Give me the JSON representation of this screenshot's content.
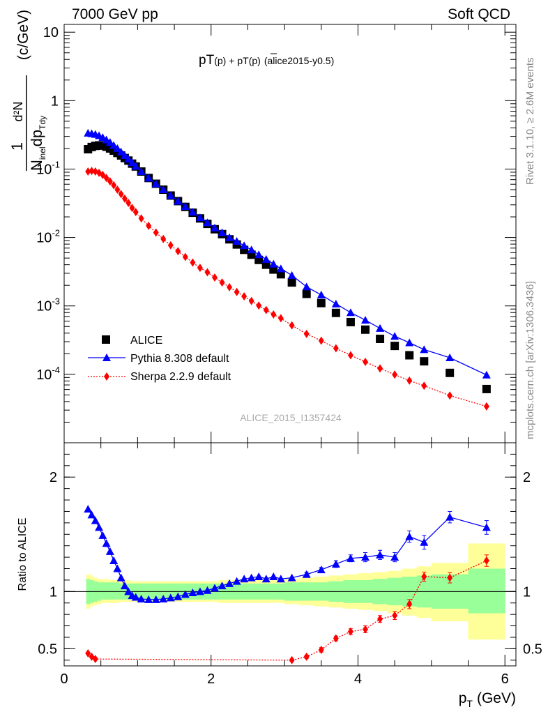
{
  "header": {
    "left": "7000 GeV pp",
    "right": "Soft QCD"
  },
  "side": {
    "rivet": "Rivet 3.1.10, ≥ 2.6M events",
    "mcplots": "mcplots.cern.ch [arXiv:1306.3436]"
  },
  "chart_data": [
    {
      "type": "scatter",
      "title": "pT(p) + pT(p̄) (alice2015-y0.5)",
      "title_parts": {
        "a": "pT",
        "b": "(p)",
        "c": "+ pT",
        "d": "(p)",
        "e": "(alice2015-y0.5)"
      },
      "watermark": "ALICE_2015_I1357424",
      "ylabel": {
        "num": "1",
        "mid": "d²N",
        "den": "N",
        "den_sub": "inel",
        "den_b": "dp",
        "den_sub2": "Tdy",
        "unit": "(c/GeV)"
      },
      "xlim": [
        0,
        6.15
      ],
      "ylim": [
        1e-05,
        13
      ],
      "log_y": true,
      "x_ticks": [
        "0",
        "2",
        "4",
        "6"
      ],
      "y_ticks": [
        {
          "value": 0.0001,
          "base": "10",
          "exp": "-4"
        },
        {
          "value": 0.001,
          "base": "10",
          "exp": "-3"
        },
        {
          "value": 0.01,
          "base": "10",
          "exp": "-2"
        },
        {
          "value": 0.1,
          "base": "10",
          "exp": "-1"
        },
        {
          "value": 1,
          "base": "1",
          "exp": ""
        },
        {
          "value": 10,
          "base": "10",
          "exp": ""
        }
      ],
      "legend": [
        "ALICE",
        "Pythia 8.308 default",
        "Sherpa 2.2.9 default"
      ],
      "legend_position": "bottom-left",
      "series": [
        {
          "name": "ALICE",
          "color": "#000000",
          "marker": "square",
          "x": [
            0.325,
            0.375,
            0.425,
            0.475,
            0.525,
            0.575,
            0.625,
            0.675,
            0.725,
            0.775,
            0.825,
            0.875,
            0.925,
            0.975,
            1.05,
            1.15,
            1.25,
            1.35,
            1.45,
            1.55,
            1.65,
            1.75,
            1.85,
            1.95,
            2.05,
            2.15,
            2.25,
            2.35,
            2.45,
            2.55,
            2.65,
            2.75,
            2.85,
            2.95,
            3.1,
            3.3,
            3.5,
            3.7,
            3.9,
            4.1,
            4.3,
            4.5,
            4.7,
            4.9,
            5.25,
            5.75
          ],
          "values": [
            0.195,
            0.21,
            0.218,
            0.222,
            0.22,
            0.212,
            0.2,
            0.186,
            0.172,
            0.158,
            0.145,
            0.133,
            0.12,
            0.109,
            0.092,
            0.074,
            0.061,
            0.05,
            0.041,
            0.034,
            0.028,
            0.023,
            0.019,
            0.0158,
            0.0132,
            0.0112,
            0.0094,
            0.0079,
            0.0066,
            0.0056,
            0.0047,
            0.004,
            0.0034,
            0.0029,
            0.0022,
            0.0015,
            0.0011,
            0.00079,
            0.00058,
            0.00045,
            0.00033,
            0.00026,
            0.00019,
            0.000155,
            0.000105,
            6.1e-05
          ]
        },
        {
          "name": "Pythia 8.308 default",
          "color": "#0000ff",
          "marker": "triangle",
          "line": "solid",
          "x": [
            0.325,
            0.375,
            0.425,
            0.475,
            0.525,
            0.575,
            0.625,
            0.675,
            0.725,
            0.775,
            0.825,
            0.875,
            0.925,
            0.975,
            1.05,
            1.15,
            1.25,
            1.35,
            1.45,
            1.55,
            1.65,
            1.75,
            1.85,
            1.95,
            2.05,
            2.15,
            2.25,
            2.35,
            2.45,
            2.55,
            2.65,
            2.75,
            2.85,
            2.95,
            3.1,
            3.3,
            3.5,
            3.7,
            3.9,
            4.1,
            4.3,
            4.5,
            4.7,
            4.9,
            5.25,
            5.75
          ],
          "values": [
            0.335,
            0.33,
            0.322,
            0.308,
            0.29,
            0.268,
            0.246,
            0.222,
            0.2,
            0.178,
            0.158,
            0.14,
            0.124,
            0.11,
            0.092,
            0.074,
            0.061,
            0.05,
            0.041,
            0.034,
            0.0285,
            0.0235,
            0.0195,
            0.0165,
            0.0138,
            0.0118,
            0.01,
            0.0088,
            0.0076,
            0.0066,
            0.0056,
            0.0048,
            0.0041,
            0.0035,
            0.0028,
            0.0019,
            0.00145,
            0.00107,
            0.0008,
            0.00062,
            0.00047,
            0.00036,
            0.00029,
            0.00023,
            0.000175,
            9.8e-05
          ]
        },
        {
          "name": "Sherpa 2.2.9 default",
          "color": "#ff0000",
          "marker": "diamond",
          "line": "dotted",
          "x": [
            0.325,
            0.375,
            0.425,
            0.475,
            0.525,
            0.575,
            0.625,
            0.675,
            0.725,
            0.775,
            0.825,
            0.875,
            0.925,
            0.975,
            1.05,
            1.15,
            1.25,
            1.35,
            1.45,
            1.55,
            1.65,
            1.75,
            1.85,
            1.95,
            2.05,
            2.15,
            2.25,
            2.35,
            2.45,
            2.55,
            2.65,
            2.75,
            2.85,
            2.95,
            3.1,
            3.3,
            3.5,
            3.7,
            3.9,
            4.1,
            4.3,
            4.5,
            4.7,
            4.9,
            5.25,
            5.75
          ],
          "values": [
            0.092,
            0.094,
            0.092,
            0.088,
            0.082,
            0.074,
            0.066,
            0.058,
            0.05,
            0.043,
            0.037,
            0.032,
            0.027,
            0.0235,
            0.019,
            0.0148,
            0.0118,
            0.0095,
            0.0077,
            0.0063,
            0.0052,
            0.0043,
            0.0036,
            0.0031,
            0.0026,
            0.0022,
            0.00188,
            0.0016,
            0.00138,
            0.00118,
            0.00101,
            0.00087,
            0.00075,
            0.00066,
            0.00052,
            0.00039,
            0.00031,
            0.00024,
            0.00019,
            0.000152,
            0.000122,
            9.9e-05,
            8.1e-05,
            6.8e-05,
            4.9e-05,
            3.4e-05
          ]
        }
      ]
    },
    {
      "type": "scatter",
      "ylabel": "Ratio to ALICE",
      "xlabel": {
        "p": "p",
        "sub": "T",
        "unit": "(GeV)"
      },
      "xlim": [
        0,
        6.15
      ],
      "ylim": [
        0.35,
        2.3
      ],
      "x_ticks": [
        "0",
        "2",
        "4",
        "6"
      ],
      "y_ticks": [
        "0.5",
        "1",
        "2"
      ],
      "reference": 1,
      "bands": {
        "edges": [
          0.3,
          0.35,
          0.4,
          0.45,
          0.5,
          0.55,
          0.6,
          0.65,
          0.7,
          0.75,
          0.8,
          0.85,
          0.9,
          0.95,
          1.0,
          1.1,
          1.2,
          1.3,
          1.4,
          1.5,
          1.6,
          1.7,
          1.8,
          1.9,
          2.0,
          2.1,
          2.2,
          2.3,
          2.4,
          2.5,
          2.6,
          2.7,
          2.8,
          2.9,
          3.0,
          3.2,
          3.4,
          3.6,
          3.8,
          4.0,
          4.2,
          4.4,
          4.6,
          4.8,
          5.0,
          5.5,
          6.0
        ],
        "outer_low": [
          0.85,
          0.87,
          0.88,
          0.89,
          0.9,
          0.9,
          0.9,
          0.9,
          0.9,
          0.91,
          0.91,
          0.91,
          0.91,
          0.91,
          0.91,
          0.91,
          0.91,
          0.91,
          0.91,
          0.91,
          0.91,
          0.91,
          0.91,
          0.91,
          0.91,
          0.9,
          0.9,
          0.9,
          0.9,
          0.9,
          0.9,
          0.9,
          0.9,
          0.9,
          0.89,
          0.88,
          0.87,
          0.86,
          0.85,
          0.84,
          0.83,
          0.81,
          0.79,
          0.77,
          0.74,
          0.58
        ],
        "outer_high": [
          1.15,
          1.14,
          1.12,
          1.11,
          1.11,
          1.11,
          1.1,
          1.1,
          1.1,
          1.1,
          1.1,
          1.1,
          1.09,
          1.09,
          1.09,
          1.09,
          1.09,
          1.09,
          1.09,
          1.09,
          1.09,
          1.09,
          1.09,
          1.09,
          1.09,
          1.1,
          1.1,
          1.1,
          1.1,
          1.1,
          1.1,
          1.1,
          1.1,
          1.1,
          1.11,
          1.12,
          1.13,
          1.14,
          1.15,
          1.16,
          1.17,
          1.18,
          1.2,
          1.22,
          1.25,
          1.42
        ],
        "inner_low": [
          0.89,
          0.9,
          0.91,
          0.92,
          0.93,
          0.93,
          0.93,
          0.93,
          0.93,
          0.93,
          0.93,
          0.93,
          0.93,
          0.93,
          0.93,
          0.93,
          0.93,
          0.93,
          0.93,
          0.93,
          0.93,
          0.93,
          0.93,
          0.93,
          0.93,
          0.93,
          0.93,
          0.93,
          0.93,
          0.93,
          0.93,
          0.93,
          0.93,
          0.93,
          0.92,
          0.92,
          0.92,
          0.91,
          0.9,
          0.9,
          0.89,
          0.88,
          0.87,
          0.86,
          0.85,
          0.81
        ],
        "inner_high": [
          1.11,
          1.1,
          1.09,
          1.08,
          1.08,
          1.08,
          1.08,
          1.08,
          1.08,
          1.07,
          1.07,
          1.07,
          1.07,
          1.07,
          1.07,
          1.07,
          1.07,
          1.07,
          1.07,
          1.07,
          1.07,
          1.07,
          1.07,
          1.07,
          1.07,
          1.07,
          1.07,
          1.07,
          1.07,
          1.07,
          1.07,
          1.07,
          1.07,
          1.07,
          1.08,
          1.08,
          1.08,
          1.09,
          1.1,
          1.1,
          1.11,
          1.12,
          1.13,
          1.14,
          1.15,
          1.2
        ]
      },
      "series": [
        {
          "name": "Pythia 8.308 default",
          "color": "#0000ff",
          "marker": "triangle",
          "x": [
            0.325,
            0.375,
            0.425,
            0.475,
            0.525,
            0.575,
            0.625,
            0.675,
            0.725,
            0.775,
            0.825,
            0.875,
            0.925,
            0.975,
            1.05,
            1.15,
            1.25,
            1.35,
            1.45,
            1.55,
            1.65,
            1.75,
            1.85,
            1.95,
            2.05,
            2.15,
            2.25,
            2.35,
            2.45,
            2.55,
            2.65,
            2.75,
            2.85,
            2.95,
            3.1,
            3.3,
            3.5,
            3.7,
            3.9,
            4.1,
            4.3,
            4.5,
            4.7,
            4.9,
            5.25,
            5.75
          ],
          "values": [
            1.72,
            1.67,
            1.62,
            1.56,
            1.49,
            1.42,
            1.35,
            1.27,
            1.2,
            1.12,
            1.05,
            1.0,
            0.965,
            0.95,
            0.935,
            0.93,
            0.93,
            0.935,
            0.945,
            0.955,
            0.975,
            0.99,
            1.0,
            1.01,
            1.03,
            1.05,
            1.07,
            1.09,
            1.11,
            1.12,
            1.13,
            1.11,
            1.13,
            1.11,
            1.12,
            1.15,
            1.19,
            1.24,
            1.29,
            1.3,
            1.32,
            1.3,
            1.48,
            1.43,
            1.65,
            1.56
          ],
          "errors": [
            0,
            0,
            0,
            0,
            0,
            0,
            0,
            0,
            0,
            0,
            0,
            0,
            0,
            0,
            0,
            0,
            0,
            0,
            0,
            0,
            0,
            0,
            0,
            0,
            0,
            0,
            0,
            0,
            0,
            0,
            0,
            0,
            0,
            0,
            0,
            0.02,
            0.02,
            0.03,
            0.03,
            0.04,
            0.04,
            0.04,
            0.05,
            0.06,
            0.05,
            0.06
          ]
        },
        {
          "name": "Sherpa 2.2.9 default",
          "color": "#ff0000",
          "marker": "diamond",
          "line": "dotted",
          "x": [
            0.325,
            0.375,
            0.425,
            3.1,
            3.3,
            3.5,
            3.7,
            3.9,
            4.1,
            4.3,
            4.5,
            4.7,
            4.9,
            5.25,
            5.75
          ],
          "values": [
            0.46,
            0.43,
            0.41,
            0.4,
            0.43,
            0.49,
            0.59,
            0.65,
            0.67,
            0.76,
            0.79,
            0.89,
            1.13,
            1.12,
            1.27
          ],
          "errors": [
            0,
            0,
            0,
            0.01,
            0.015,
            0.02,
            0.02,
            0.025,
            0.03,
            0.03,
            0.035,
            0.04,
            0.04,
            0.045,
            0.05
          ]
        }
      ]
    }
  ]
}
